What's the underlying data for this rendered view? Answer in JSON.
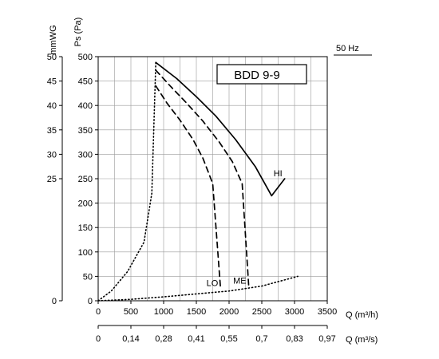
{
  "chart_data": {
    "type": "line",
    "title": "BDD 9-9",
    "frequency_label": "50 Hz",
    "x_primary": {
      "label": "Q (m³/h)",
      "range": [
        0,
        3500
      ],
      "ticks": [
        0,
        500,
        1000,
        1500,
        2000,
        2500,
        3000,
        3500
      ],
      "tick_labels": [
        "0",
        "500",
        "1000",
        "1500",
        "2000",
        "2500",
        "3000",
        "3500"
      ]
    },
    "x_secondary": {
      "label": "Q (m³/s)",
      "tick_labels": [
        "0",
        "0,14",
        "0,28",
        "0,41",
        "0,55",
        "0,7",
        "0,83",
        "0,97"
      ]
    },
    "y_primary": {
      "label": "Ps (Pa)",
      "range": [
        0,
        500
      ],
      "ticks": [
        0,
        50,
        100,
        150,
        200,
        250,
        300,
        350,
        400,
        450,
        500
      ],
      "tick_labels": [
        "0",
        "50",
        "100",
        "150",
        "200",
        "250",
        "300",
        "350",
        "400",
        "450",
        "500"
      ]
    },
    "y_secondary": {
      "label": "mmWG",
      "tick_labels": [
        "0",
        "25",
        "30",
        "35",
        "40",
        "45",
        "50"
      ],
      "tick_values_pa": [
        0,
        250,
        300,
        350,
        400,
        450,
        500
      ]
    },
    "grid": true,
    "series": [
      {
        "name": "HI",
        "style": "solid",
        "points": [
          [
            880,
            488
          ],
          [
            1200,
            455
          ],
          [
            1500,
            418
          ],
          [
            1800,
            378
          ],
          [
            2100,
            330
          ],
          [
            2400,
            275
          ],
          [
            2650,
            215
          ],
          [
            2850,
            250
          ]
        ]
      },
      {
        "name": "ME",
        "style": "dashed",
        "points": [
          [
            880,
            472
          ],
          [
            1100,
            440
          ],
          [
            1350,
            405
          ],
          [
            1600,
            368
          ],
          [
            1850,
            325
          ],
          [
            2050,
            285
          ],
          [
            2200,
            240
          ],
          [
            2300,
            30
          ]
        ]
      },
      {
        "name": "LO",
        "style": "dashed",
        "points": [
          [
            880,
            440
          ],
          [
            1050,
            405
          ],
          [
            1250,
            370
          ],
          [
            1450,
            330
          ],
          [
            1600,
            292
          ],
          [
            1750,
            240
          ],
          [
            1870,
            25
          ]
        ]
      },
      {
        "name": "",
        "style": "dotted",
        "points": [
          [
            0,
            0
          ],
          [
            200,
            20
          ],
          [
            450,
            60
          ],
          [
            700,
            120
          ],
          [
            820,
            220
          ],
          [
            880,
            488
          ]
        ]
      },
      {
        "name": "",
        "style": "dotted",
        "points": [
          [
            0,
            0
          ],
          [
            500,
            3
          ],
          [
            1000,
            8
          ],
          [
            1500,
            14
          ],
          [
            2000,
            20
          ],
          [
            2500,
            30
          ],
          [
            3050,
            50
          ]
        ]
      }
    ]
  }
}
